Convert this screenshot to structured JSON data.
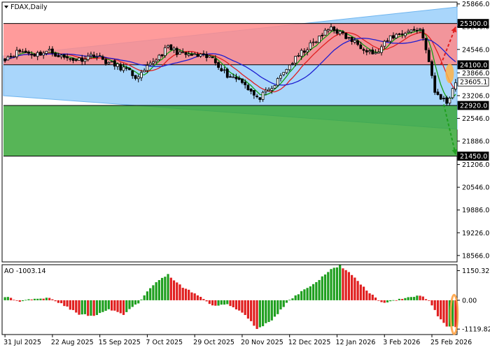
{
  "chart_data": [
    {
      "type": "candlestick",
      "symbol_label": "FDAX,Daily",
      "y_axis": {
        "range": [
          18400,
          25900
        ],
        "ticks": [
          "25866.0",
          "25206.0",
          "24546.0",
          "23866.0",
          "23206.0",
          "22546.0",
          "21886.0",
          "21206.0",
          "20546.0",
          "19886.0",
          "19226.0",
          "18566.0"
        ]
      },
      "x_axis": {
        "labels": [
          "31 Jul 2025",
          "22 Aug 2025",
          "15 Sep 2025",
          "7 Oct 2025",
          "29 Oct 2025",
          "20 Nov 2025",
          "12 Dec 2025",
          "12 Jan 2026",
          "3 Feb 2026",
          "25 Feb 2026"
        ]
      },
      "price_path": [
        [
          0,
          24300
        ],
        [
          5,
          24500
        ],
        [
          10,
          24400
        ],
        [
          15,
          24500
        ],
        [
          20,
          24300
        ],
        [
          25,
          24250
        ],
        [
          30,
          24400
        ],
        [
          35,
          24150
        ],
        [
          40,
          24000
        ],
        [
          45,
          23700
        ],
        [
          50,
          24200
        ],
        [
          55,
          24600
        ],
        [
          60,
          24400
        ],
        [
          65,
          24350
        ],
        [
          70,
          24300
        ],
        [
          75,
          23800
        ],
        [
          80,
          23650
        ],
        [
          85,
          23100
        ],
        [
          90,
          23400
        ],
        [
          95,
          24000
        ],
        [
          100,
          24450
        ],
        [
          105,
          24800
        ],
        [
          110,
          25200
        ],
        [
          115,
          24900
        ],
        [
          120,
          24650
        ],
        [
          125,
          24400
        ],
        [
          130,
          24900
        ],
        [
          135,
          25050
        ],
        [
          140,
          25150
        ],
        [
          142,
          24600
        ],
        [
          145,
          23300
        ],
        [
          149,
          23000
        ],
        [
          152,
          23600
        ]
      ],
      "key_levels": [
        {
          "label": "25300.0",
          "value": 25300,
          "color": "#ff0000"
        },
        {
          "label": "24100.0",
          "value": 24100,
          "color": "#ff0000"
        },
        {
          "label": "23605.1",
          "value": 23605.1,
          "color": "#ffffff"
        },
        {
          "label": "22920.0",
          "value": 22920,
          "color": "#008000"
        },
        {
          "label": "21450.0",
          "value": 21450,
          "color": "#008000"
        }
      ],
      "zones": [
        {
          "from": 24100,
          "to": 25300,
          "color": "#ff8a8a"
        },
        {
          "from": 21450,
          "to": 22920,
          "color": "#3aa83a"
        }
      ],
      "moving_averages": [
        {
          "color": "#12a012",
          "period": 5
        },
        {
          "color": "#e01f1f",
          "period": 10
        },
        {
          "color": "#1d1dd0",
          "period": 20
        }
      ],
      "forecast_arrows": [
        {
          "direction": "up",
          "color": "#e01f1f",
          "from": [
            147,
            24100
          ],
          "to": [
            152,
            25200
          ]
        },
        {
          "direction": "down",
          "color": "#1f9f1f",
          "from": [
            148,
            22950
          ],
          "to": [
            152,
            21500
          ]
        }
      ]
    },
    {
      "type": "bar",
      "indicator": "AO",
      "label": "AO -1003.14",
      "y_ticks": [
        "1150.32",
        "0.00",
        "-1119.82"
      ],
      "y_range": [
        -1250,
        1300
      ],
      "profile": [
        [
          0,
          150
        ],
        [
          5,
          -50
        ],
        [
          10,
          80
        ],
        [
          15,
          100
        ],
        [
          20,
          -200
        ],
        [
          25,
          -550
        ],
        [
          30,
          -600
        ],
        [
          35,
          -350
        ],
        [
          40,
          -550
        ],
        [
          45,
          -100
        ],
        [
          50,
          600
        ],
        [
          55,
          1000
        ],
        [
          60,
          500
        ],
        [
          65,
          200
        ],
        [
          70,
          -200
        ],
        [
          75,
          -150
        ],
        [
          80,
          -450
        ],
        [
          85,
          -1100
        ],
        [
          90,
          -800
        ],
        [
          95,
          -100
        ],
        [
          100,
          350
        ],
        [
          105,
          700
        ],
        [
          110,
          1200
        ],
        [
          113,
          1350
        ],
        [
          117,
          1000
        ],
        [
          120,
          600
        ],
        [
          124,
          200
        ],
        [
          127,
          -100
        ],
        [
          130,
          -50
        ],
        [
          135,
          100
        ],
        [
          140,
          200
        ],
        [
          143,
          0
        ],
        [
          146,
          -600
        ],
        [
          149,
          -1000
        ],
        [
          152,
          -1050
        ]
      ]
    }
  ]
}
